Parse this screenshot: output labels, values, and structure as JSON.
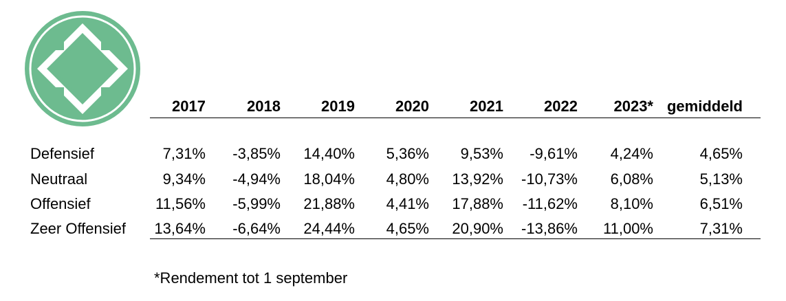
{
  "colors": {
    "logo_green": "#6dbb8f",
    "logo_white": "#ffffff",
    "text": "#000000"
  },
  "logo": {
    "icon": "green-circle-diamond-logo"
  },
  "chart_data": {
    "type": "table",
    "columns": [
      "2017",
      "2018",
      "2019",
      "2020",
      "2021",
      "2022",
      "2023*",
      "gemiddeld"
    ],
    "rows": [
      {
        "label": "Defensief",
        "values": [
          "7,31%",
          "-3,85%",
          "14,40%",
          "5,36%",
          "9,53%",
          "-9,61%",
          "4,24%",
          "4,65%"
        ]
      },
      {
        "label": "Neutraal",
        "values": [
          "9,34%",
          "-4,94%",
          "18,04%",
          "4,80%",
          "13,92%",
          "-10,73%",
          "6,08%",
          "5,13%"
        ]
      },
      {
        "label": "Offensief",
        "values": [
          "11,56%",
          "-5,99%",
          "21,88%",
          "4,41%",
          "17,88%",
          "-11,62%",
          "8,10%",
          "6,51%"
        ]
      },
      {
        "label": "Zeer Offensief",
        "values": [
          "13,64%",
          "-6,64%",
          "24,44%",
          "4,65%",
          "20,90%",
          "-13,86%",
          "11,00%",
          "7,31%"
        ]
      }
    ],
    "footnote": "*Rendement tot 1 september"
  }
}
